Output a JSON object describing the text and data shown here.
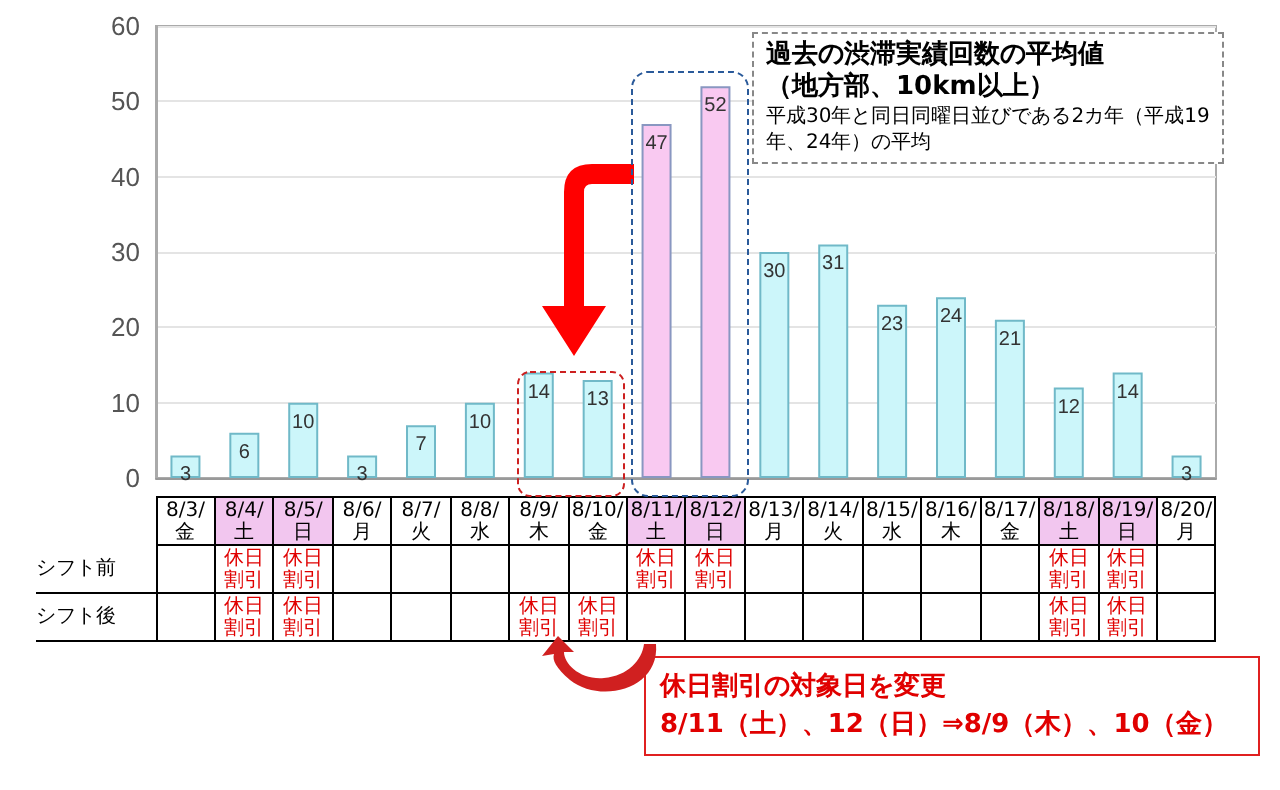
{
  "chart_data": [
    {
      "type": "bar",
      "title": "過去の渋滞実績回数の平均値（地方部、10km以上）",
      "subtitle": "平成30年と同日同曜日並びである2カ年（平成19年、24年）の平均",
      "categories": [
        "8/3/金",
        "8/4/土",
        "8/5/日",
        "8/6/月",
        "8/7/火",
        "8/8/水",
        "8/9/木",
        "8/10/金",
        "8/11/土",
        "8/12/日",
        "8/13/月",
        "8/14/火",
        "8/15/水",
        "8/16/木",
        "8/17/金",
        "8/18/土",
        "8/19/日",
        "8/20/月"
      ],
      "values": [
        3,
        6,
        10,
        3,
        7,
        10,
        14,
        13,
        47,
        52,
        30,
        31,
        23,
        24,
        21,
        12,
        14,
        3
      ],
      "colors": [
        "#ccf6fa",
        "#ccf6fa",
        "#ccf6fa",
        "#ccf6fa",
        "#ccf6fa",
        "#ccf6fa",
        "#ccf6fa",
        "#ccf6fa",
        "#f9c9f1",
        "#f9c9f1",
        "#ccf6fa",
        "#ccf6fa",
        "#ccf6fa",
        "#ccf6fa",
        "#ccf6fa",
        "#ccf6fa",
        "#ccf6fa",
        "#ccf6fa"
      ],
      "ylim": [
        0,
        60
      ],
      "yticks": [
        0,
        10,
        20,
        30,
        40,
        50,
        60
      ],
      "grid": "y",
      "data_labels": true,
      "annotations": [
        "休日割引の対象日を変更",
        "8/11（土）、12（日）⇒8/9（木）、10（金）"
      ]
    },
    {
      "type": "other",
      "y_categories": [
        "シフト前",
        "シフト後"
      ],
      "cell_labels": [
        [
          null,
          "休日割引",
          "休日割引",
          null,
          null,
          null,
          null,
          null,
          "休日割引",
          "休日割引",
          null,
          null,
          null,
          null,
          null,
          "休日割引",
          "休日割引",
          null
        ],
        [
          null,
          "休日割引",
          "休日割引",
          null,
          null,
          null,
          "休日割引",
          "休日割引",
          null,
          null,
          null,
          null,
          null,
          null,
          null,
          "休日割引",
          "休日割引",
          null
        ]
      ]
    }
  ]
}
